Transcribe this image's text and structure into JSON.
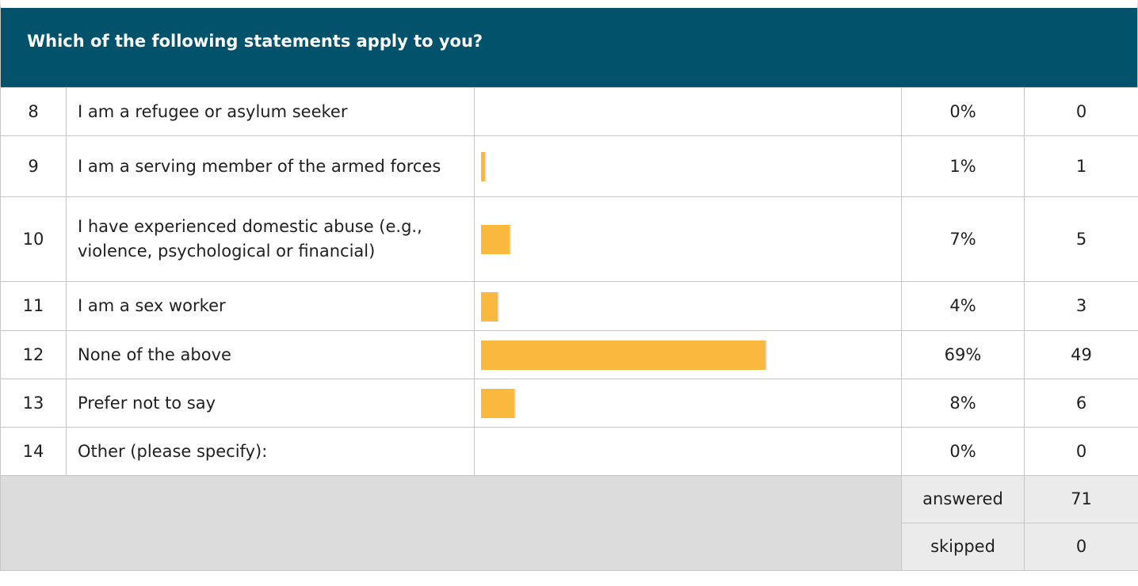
{
  "chart_data": {
    "type": "table",
    "title": "Which of the following statements apply to you?",
    "rows": [
      {
        "num": "8",
        "label": "I am a refugee or asylum seeker",
        "percent_label": "0%",
        "percent": 0,
        "count": "0"
      },
      {
        "num": "9",
        "label": "I am a serving member of the armed forces",
        "percent_label": "1%",
        "percent": 1,
        "count": "1"
      },
      {
        "num": "10",
        "label": "I have experienced domestic abuse (e.g., violence, psychological or financial)",
        "percent_label": "7%",
        "percent": 7,
        "count": "5"
      },
      {
        "num": "11",
        "label": "I am a sex worker",
        "percent_label": "4%",
        "percent": 4,
        "count": "3"
      },
      {
        "num": "12",
        "label": "None of the above",
        "percent_label": "69%",
        "percent": 69,
        "count": "49"
      },
      {
        "num": "13",
        "label": "Prefer not to say",
        "percent_label": "8%",
        "percent": 8,
        "count": "6"
      },
      {
        "num": "14",
        "label": "Other (please specify):",
        "percent_label": "0%",
        "percent": 0,
        "count": "0"
      }
    ],
    "summary": [
      {
        "label": "answered",
        "value": "71"
      },
      {
        "label": "skipped",
        "value": "0"
      }
    ],
    "bar_color": "#f8b93e",
    "header_color": "#02526b"
  }
}
